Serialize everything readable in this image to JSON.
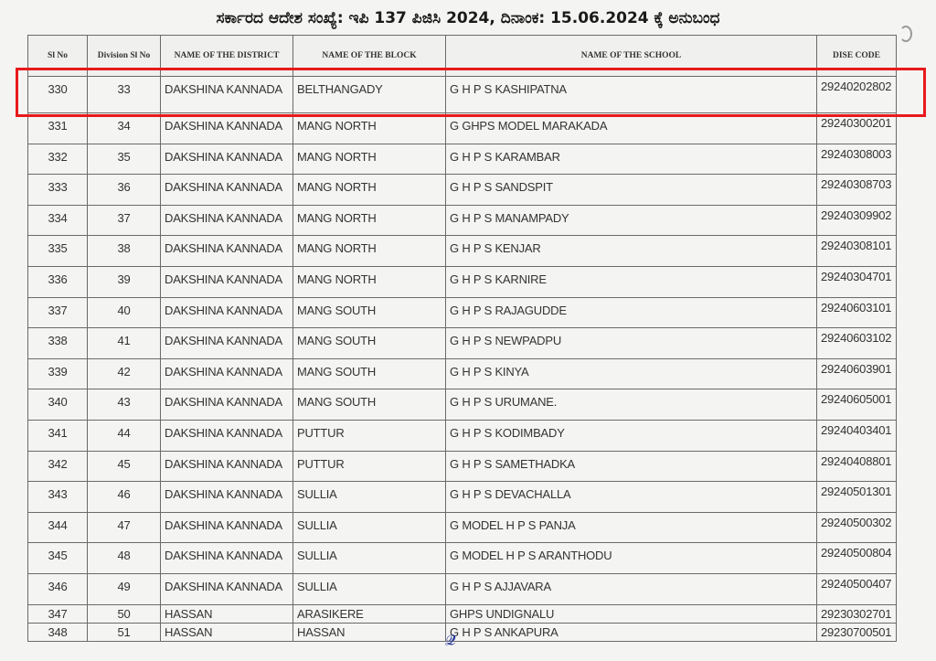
{
  "title": "ಸರ್ಕಾರದ ಆದೇಶ ಸಂಖ್ಯೆ: ಇಪಿ 137 ಪಿಜಿಸಿ 2024, ದಿನಾಂಕ: 15.06.2024 ಕ್ಕೆ ಅನುಬಂಧ",
  "headers": [
    "Sl No",
    "Division  Sl No",
    "NAME OF THE DISTRICT",
    "NAME OF THE BLOCK",
    "NAME OF THE SCHOOL",
    "DISE CODE"
  ],
  "highlight_color": "#e8191c",
  "rows": [
    [
      "330",
      "33",
      "DAKSHINA KANNADA",
      "BELTHANGADY",
      "G H P S KASHIPATNA",
      "29240202802"
    ],
    [
      "331",
      "34",
      "DAKSHINA KANNADA",
      "MANG NORTH",
      "G GHPS MODEL  MARAKADA",
      "29240300201"
    ],
    [
      "332",
      "35",
      "DAKSHINA KANNADA",
      "MANG NORTH",
      "G H P S KARAMBAR",
      "29240308003"
    ],
    [
      "333",
      "36",
      "DAKSHINA KANNADA",
      "MANG NORTH",
      "G H P S SANDSPIT",
      "29240308703"
    ],
    [
      "334",
      "37",
      "DAKSHINA KANNADA",
      "MANG NORTH",
      "G H P S MANAMPADY",
      "29240309902"
    ],
    [
      "335",
      "38",
      "DAKSHINA KANNADA",
      "MANG NORTH",
      "G H P S KENJAR",
      "29240308101"
    ],
    [
      "336",
      "39",
      "DAKSHINA KANNADA",
      "MANG NORTH",
      "G H P S KARNIRE",
      "29240304701"
    ],
    [
      "337",
      "40",
      "DAKSHINA KANNADA",
      "MANG SOUTH",
      "G H P S RAJAGUDDE",
      "29240603101"
    ],
    [
      "338",
      "41",
      "DAKSHINA KANNADA",
      "MANG SOUTH",
      "G H P S NEWPADPU",
      "29240603102"
    ],
    [
      "339",
      "42",
      "DAKSHINA KANNADA",
      "MANG SOUTH",
      "G H P S KINYA",
      "29240603901"
    ],
    [
      "340",
      "43",
      "DAKSHINA KANNADA",
      "MANG SOUTH",
      "G H P S URUMANE.",
      "29240605001"
    ],
    [
      "341",
      "44",
      "DAKSHINA KANNADA",
      "PUTTUR",
      "G H P S KODIMBADY",
      "29240403401"
    ],
    [
      "342",
      "45",
      "DAKSHINA KANNADA",
      "PUTTUR",
      "G H P S SAMETHADKA",
      "29240408801"
    ],
    [
      "343",
      "46",
      "DAKSHINA KANNADA",
      "SULLIA",
      "G H P S DEVACHALLA",
      "29240501301"
    ],
    [
      "344",
      "47",
      "DAKSHINA KANNADA",
      "SULLIA",
      "G  MODEL H P S PANJA",
      "29240500302"
    ],
    [
      "345",
      "48",
      "DAKSHINA KANNADA",
      "SULLIA",
      "G MODEL H P S ARANTHODU",
      "29240500804"
    ],
    [
      "346",
      "49",
      "DAKSHINA KANNADA",
      "SULLIA",
      "G H P S AJJAVARA",
      "29240500407"
    ],
    [
      "347",
      "50",
      "HASSAN",
      "ARASIKERE",
      "GHPS UNDIGNALU",
      "29230302701"
    ],
    [
      "348",
      "51",
      "HASSAN",
      "HASSAN",
      "G H P S  ANKAPURA",
      "29230700501"
    ]
  ]
}
